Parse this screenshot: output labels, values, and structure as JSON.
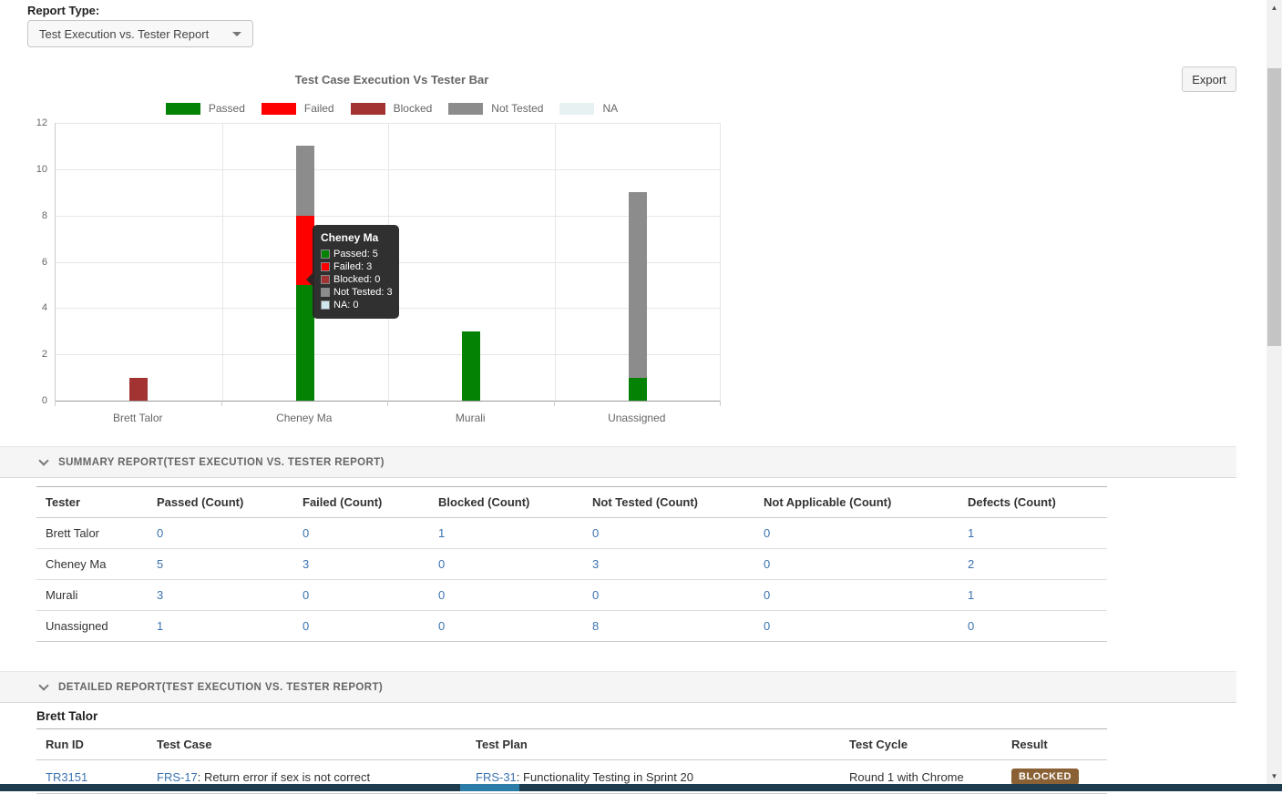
{
  "report_type": {
    "label": "Report Type:",
    "selected": "Test Execution vs. Tester Report"
  },
  "export_label": "Export",
  "chart_data": {
    "type": "bar",
    "stacked": true,
    "title": "Test Case Execution Vs Tester Bar",
    "categories": [
      "Brett Talor",
      "Cheney Ma",
      "Murali",
      "Unassigned"
    ],
    "series": [
      {
        "name": "Passed",
        "color": "#048204",
        "values": [
          0,
          5,
          3,
          1
        ]
      },
      {
        "name": "Failed",
        "color": "#ff0000",
        "values": [
          0,
          3,
          0,
          0
        ]
      },
      {
        "name": "Blocked",
        "color": "#a33333",
        "values": [
          1,
          0,
          0,
          0
        ]
      },
      {
        "name": "Not Tested",
        "color": "#8c8c8c",
        "values": [
          0,
          3,
          0,
          8
        ]
      },
      {
        "name": "NA",
        "color": "#e7f1f2",
        "values": [
          0,
          0,
          0,
          0
        ]
      }
    ],
    "ylim": [
      0,
      12
    ],
    "ytick_step": 2,
    "grid": true,
    "legend_position": "top"
  },
  "tooltip": {
    "title": "Cheney Ma",
    "rows": [
      {
        "label": "Passed",
        "value": 5,
        "color": "#048204"
      },
      {
        "label": "Failed",
        "value": 3,
        "color": "#ff0000"
      },
      {
        "label": "Blocked",
        "value": 0,
        "color": "#a33333"
      },
      {
        "label": "Not Tested",
        "value": 3,
        "color": "#8c8c8c"
      },
      {
        "label": "NA",
        "value": 0,
        "color": "#cfe8f0"
      }
    ]
  },
  "summary": {
    "section_title": "SUMMARY REPORT(TEST EXECUTION VS. TESTER REPORT)",
    "columns": [
      "Tester",
      "Passed (Count)",
      "Failed (Count)",
      "Blocked (Count)",
      "Not Tested (Count)",
      "Not Applicable (Count)",
      "Defects (Count)"
    ],
    "rows": [
      {
        "tester": "Brett Talor",
        "values": [
          0,
          0,
          1,
          0,
          0,
          1
        ]
      },
      {
        "tester": "Cheney Ma",
        "values": [
          5,
          3,
          0,
          3,
          0,
          2
        ]
      },
      {
        "tester": "Murali",
        "values": [
          3,
          0,
          0,
          0,
          0,
          1
        ]
      },
      {
        "tester": "Unassigned",
        "values": [
          1,
          0,
          0,
          8,
          0,
          0
        ]
      }
    ]
  },
  "detailed": {
    "section_title": "DETAILED REPORT(TEST EXECUTION VS. TESTER REPORT)",
    "group_title": "Brett Talor",
    "columns": [
      "Run ID",
      "Test Case",
      "Test Plan",
      "Test Cycle",
      "Result"
    ],
    "rows": [
      {
        "run_id": "TR3151",
        "test_case_link": "FRS-17",
        "test_case_text": ": Return error if sex is not correct",
        "test_plan_link": "FRS-31",
        "test_plan_text": ": Functionality Testing in Sprint 20",
        "test_cycle": "Round 1 with Chrome",
        "result": "BLOCKED"
      }
    ]
  },
  "icons": {
    "scroll_up": "▲",
    "scroll_down": "▼"
  }
}
